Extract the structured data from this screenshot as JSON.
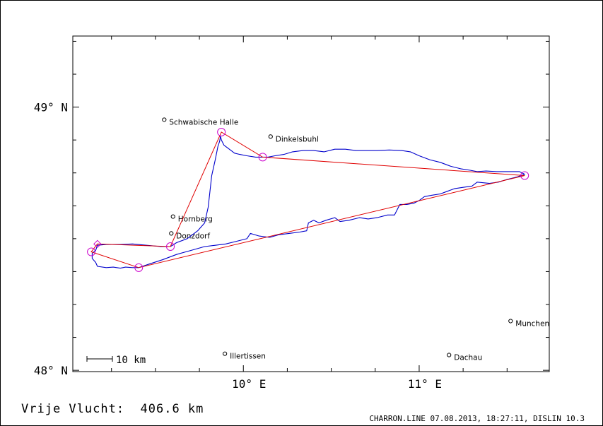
{
  "axes": {
    "y_labels": [
      "49° N",
      "48° N"
    ],
    "x_labels": [
      "10° E",
      "11° E"
    ],
    "lat_range": [
      47.995,
      49.27
    ],
    "lon_range": [
      9.03,
      11.74
    ]
  },
  "colors": {
    "track": "#0000cc",
    "route": "#e00000",
    "turnpoint": "#cc00cc",
    "frame": "#000000"
  },
  "scale_bar": {
    "label": "10 km"
  },
  "places": [
    {
      "name": "Schwabische Halle",
      "lon": 9.55,
      "lat": 48.952
    },
    {
      "name": "Dinkelsbuhl",
      "lon": 10.155,
      "lat": 48.888
    },
    {
      "name": "Hornberg",
      "lon": 9.6,
      "lat": 48.584
    },
    {
      "name": "Donzdorf",
      "lon": 9.59,
      "lat": 48.52
    },
    {
      "name": "Illertissen",
      "lon": 9.895,
      "lat": 48.063
    },
    {
      "name": "Dachau",
      "lon": 11.17,
      "lat": 48.058
    },
    {
      "name": "Munchen",
      "lon": 11.52,
      "lat": 48.187
    }
  ],
  "route": [
    {
      "lon": 9.405,
      "lat": 48.39
    },
    {
      "lon": 11.6,
      "lat": 48.74
    },
    {
      "lon": 10.11,
      "lat": 48.81
    },
    {
      "lon": 9.875,
      "lat": 48.905
    },
    {
      "lon": 9.585,
      "lat": 48.47
    },
    {
      "lon": 9.17,
      "lat": 48.48
    },
    {
      "lon": 9.135,
      "lat": 48.45
    },
    {
      "lon": 9.405,
      "lat": 48.39
    }
  ],
  "turnpoints": [
    {
      "lon": 9.405,
      "lat": 48.39,
      "shape": "circle"
    },
    {
      "lon": 11.6,
      "lat": 48.74,
      "shape": "circle"
    },
    {
      "lon": 10.11,
      "lat": 48.81,
      "shape": "circle"
    },
    {
      "lon": 9.875,
      "lat": 48.905,
      "shape": "circle"
    },
    {
      "lon": 9.585,
      "lat": 48.47,
      "shape": "circle"
    },
    {
      "lon": 9.17,
      "lat": 48.48,
      "shape": "diamond"
    },
    {
      "lon": 9.135,
      "lat": 48.45,
      "shape": "circle"
    }
  ],
  "track": [
    [
      9.405,
      48.39
    ],
    [
      9.47,
      48.405
    ],
    [
      9.54,
      48.42
    ],
    [
      9.62,
      48.44
    ],
    [
      9.7,
      48.455
    ],
    [
      9.78,
      48.47
    ],
    [
      9.84,
      48.475
    ],
    [
      9.9,
      48.48
    ],
    [
      9.96,
      48.49
    ],
    [
      10.02,
      48.5
    ],
    [
      10.04,
      48.52
    ],
    [
      10.09,
      48.51
    ],
    [
      10.15,
      48.505
    ],
    [
      10.2,
      48.515
    ],
    [
      10.26,
      48.52
    ],
    [
      10.32,
      48.525
    ],
    [
      10.36,
      48.53
    ],
    [
      10.37,
      48.56
    ],
    [
      10.4,
      48.57
    ],
    [
      10.43,
      48.56
    ],
    [
      10.47,
      48.57
    ],
    [
      10.52,
      48.58
    ],
    [
      10.55,
      48.565
    ],
    [
      10.6,
      48.57
    ],
    [
      10.66,
      48.58
    ],
    [
      10.71,
      48.575
    ],
    [
      10.76,
      48.58
    ],
    [
      10.82,
      48.59
    ],
    [
      10.86,
      48.59
    ],
    [
      10.89,
      48.63
    ],
    [
      10.93,
      48.63
    ],
    [
      10.97,
      48.635
    ],
    [
      11.0,
      48.645
    ],
    [
      11.03,
      48.66
    ],
    [
      11.07,
      48.665
    ],
    [
      11.12,
      48.67
    ],
    [
      11.16,
      48.68
    ],
    [
      11.2,
      48.69
    ],
    [
      11.25,
      48.695
    ],
    [
      11.3,
      48.7
    ],
    [
      11.33,
      48.715
    ],
    [
      11.4,
      48.71
    ],
    [
      11.45,
      48.715
    ],
    [
      11.5,
      48.725
    ],
    [
      11.56,
      48.735
    ],
    [
      11.6,
      48.745
    ],
    [
      11.57,
      48.755
    ],
    [
      11.5,
      48.755
    ],
    [
      11.44,
      48.755
    ],
    [
      11.38,
      48.757
    ],
    [
      11.33,
      48.755
    ],
    [
      11.29,
      48.76
    ],
    [
      11.24,
      48.765
    ],
    [
      11.18,
      48.775
    ],
    [
      11.12,
      48.79
    ],
    [
      11.06,
      48.8
    ],
    [
      11.0,
      48.815
    ],
    [
      10.95,
      48.83
    ],
    [
      10.9,
      48.835
    ],
    [
      10.83,
      48.837
    ],
    [
      10.76,
      48.835
    ],
    [
      10.7,
      48.835
    ],
    [
      10.64,
      48.835
    ],
    [
      10.58,
      48.84
    ],
    [
      10.52,
      48.84
    ],
    [
      10.46,
      48.83
    ],
    [
      10.4,
      48.835
    ],
    [
      10.34,
      48.835
    ],
    [
      10.28,
      48.83
    ],
    [
      10.23,
      48.82
    ],
    [
      10.18,
      48.815
    ],
    [
      10.14,
      48.81
    ],
    [
      10.11,
      48.81
    ],
    [
      10.07,
      48.81
    ],
    [
      10.02,
      48.815
    ],
    [
      9.98,
      48.82
    ],
    [
      9.95,
      48.825
    ],
    [
      9.92,
      48.84
    ],
    [
      9.89,
      48.855
    ],
    [
      9.875,
      48.875
    ],
    [
      9.87,
      48.89
    ],
    [
      9.865,
      48.87
    ],
    [
      9.855,
      48.85
    ],
    [
      9.84,
      48.8
    ],
    [
      9.82,
      48.74
    ],
    [
      9.81,
      48.68
    ],
    [
      9.8,
      48.62
    ],
    [
      9.78,
      48.56
    ],
    [
      9.74,
      48.53
    ],
    [
      9.68,
      48.5
    ],
    [
      9.62,
      48.485
    ],
    [
      9.585,
      48.47
    ],
    [
      9.53,
      48.47
    ],
    [
      9.45,
      48.475
    ],
    [
      9.37,
      48.48
    ],
    [
      9.3,
      48.478
    ],
    [
      9.22,
      48.478
    ],
    [
      9.17,
      48.475
    ],
    [
      9.16,
      48.455
    ],
    [
      9.14,
      48.445
    ],
    [
      9.14,
      48.425
    ],
    [
      9.16,
      48.41
    ],
    [
      9.17,
      48.395
    ],
    [
      9.22,
      48.39
    ],
    [
      9.26,
      48.392
    ],
    [
      9.3,
      48.388
    ],
    [
      9.33,
      48.392
    ],
    [
      9.37,
      48.39
    ],
    [
      9.405,
      48.39
    ]
  ],
  "footer": {
    "left": "Vrije Vlucht:  406.6 km",
    "right": "CHARRON.LINE 07.08.2013, 18:27:11, DISLIN 10.3"
  }
}
